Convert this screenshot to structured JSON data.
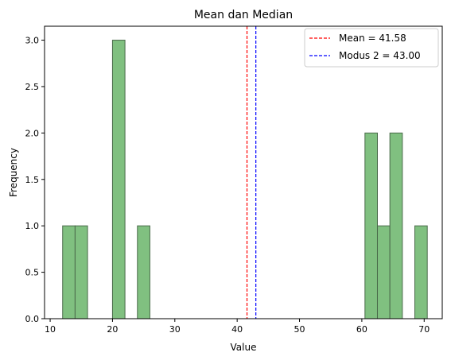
{
  "chart_data": {
    "type": "bar",
    "title": "Mean dan Median",
    "xlabel": "Value",
    "ylabel": "Frequency",
    "xlim": [
      9.1,
      72.9
    ],
    "ylim": [
      0,
      3.15
    ],
    "xticks": [
      10,
      20,
      30,
      40,
      50,
      60,
      70
    ],
    "xtick_labels": [
      "10",
      "20",
      "30",
      "40",
      "50",
      "60",
      "70"
    ],
    "yticks": [
      0,
      0.5,
      1.0,
      1.5,
      2.0,
      2.5,
      3.0
    ],
    "ytick_labels": [
      "0.0",
      "0.5",
      "1.0",
      "1.5",
      "2.0",
      "2.5",
      "3.0"
    ],
    "bar_color": "#80c080",
    "bar_edge_color": "#4a6a4a",
    "bins": [
      {
        "x0": 12.0,
        "x1": 14.0,
        "count": 1
      },
      {
        "x0": 14.0,
        "x1": 16.0,
        "count": 1
      },
      {
        "x0": 20.0,
        "x1": 22.0,
        "count": 3
      },
      {
        "x0": 24.0,
        "x1": 26.0,
        "count": 1
      },
      {
        "x0": 60.5,
        "x1": 62.5,
        "count": 2
      },
      {
        "x0": 62.5,
        "x1": 64.5,
        "count": 1
      },
      {
        "x0": 64.5,
        "x1": 66.5,
        "count": 2
      },
      {
        "x0": 68.5,
        "x1": 70.5,
        "count": 1
      }
    ],
    "vlines": [
      {
        "label": "Mean = 41.58",
        "value": 41.58,
        "color": "#ff0000"
      },
      {
        "label": "Modus 2 = 43.00",
        "value": 43.0,
        "color": "#0000ff"
      }
    ],
    "legend": {
      "placement": "top-right"
    },
    "grid": false
  }
}
